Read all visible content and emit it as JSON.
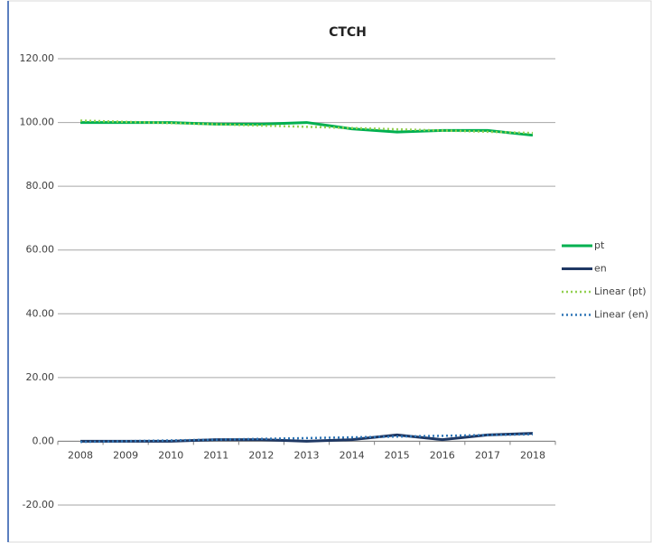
{
  "chart_data": {
    "type": "line",
    "title": "CTCH",
    "categories": [
      "2008",
      "2009",
      "2010",
      "2011",
      "2012",
      "2013",
      "2014",
      "2015",
      "2016",
      "2017",
      "2018"
    ],
    "series": [
      {
        "name": "pt",
        "color": "#00b050",
        "style": "solid",
        "values": [
          100,
          100,
          100,
          99.5,
          99.5,
          100,
          98,
          97,
          97.5,
          97.5,
          96
        ]
      },
      {
        "name": "en",
        "color": "#1f3864",
        "style": "solid",
        "values": [
          0,
          0,
          0,
          0.5,
          0.5,
          0,
          0.5,
          2,
          0.5,
          2,
          2.5
        ]
      },
      {
        "name": "Linear (pt)",
        "color": "#92d050",
        "style": "dotted",
        "values": [
          100.6,
          100.21,
          99.82,
          99.43,
          99.04,
          98.65,
          98.26,
          97.87,
          97.48,
          97.09,
          96.7
        ]
      },
      {
        "name": "Linear (en)",
        "color": "#2e75b6",
        "style": "dotted",
        "values": [
          -0.2,
          0.04,
          0.28,
          0.52,
          0.76,
          1.0,
          1.24,
          1.48,
          1.72,
          1.96,
          2.2
        ]
      }
    ],
    "ylim": [
      -20,
      120
    ],
    "yticks": [
      {
        "value": -20,
        "label": "-20.00"
      },
      {
        "value": 0,
        "label": "0.00"
      },
      {
        "value": 20,
        "label": "20.00"
      },
      {
        "value": 40,
        "label": "40.00"
      },
      {
        "value": 60,
        "label": "60.00"
      },
      {
        "value": 80,
        "label": "80.00"
      },
      {
        "value": 100,
        "label": "100.00"
      },
      {
        "value": 120,
        "label": "120.00"
      }
    ],
    "grid": true,
    "legend": "right"
  }
}
